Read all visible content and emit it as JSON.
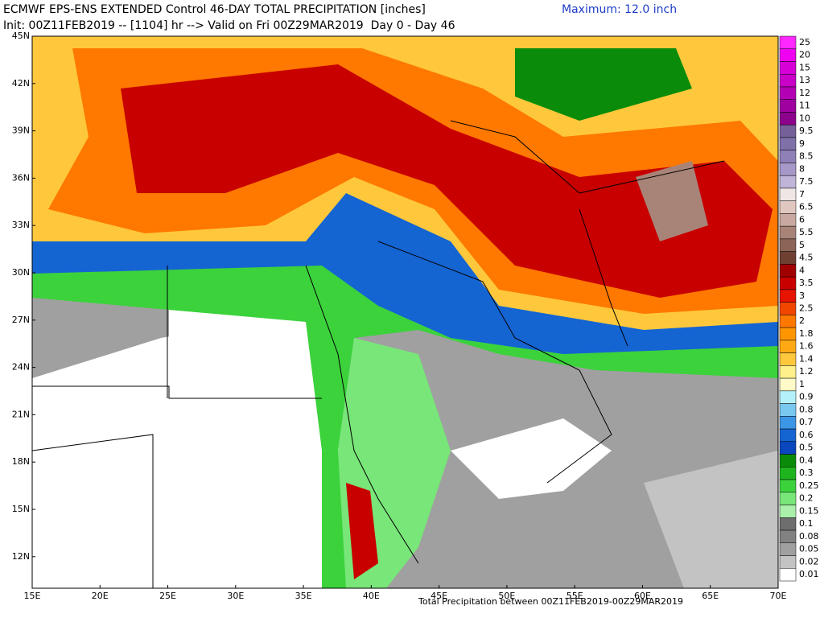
{
  "header": {
    "title": "ECMWF EPS-ENS EXTENDED Control 46-DAY TOTAL PRECIPITATION [inches]",
    "maximum": "Maximum: 12.0 inch",
    "init": "Init: 00Z11FEB2019 -- [1104] hr --> Valid on Fri 00Z29MAR2019  Day 0 - Day 46"
  },
  "lat_labels": [
    "45N",
    "42N",
    "39N",
    "36N",
    "33N",
    "30N",
    "27N",
    "24N",
    "21N",
    "18N",
    "15N",
    "12N"
  ],
  "lon_labels": [
    "15E",
    "20E",
    "25E",
    "30E",
    "35E",
    "40E",
    "45E",
    "50E",
    "55E",
    "60E",
    "65E",
    "70E"
  ],
  "colorbar": [
    {
      "label": "25",
      "color": "#ff28ff"
    },
    {
      "label": "20",
      "color": "#f000f0"
    },
    {
      "label": "15",
      "color": "#d700d7"
    },
    {
      "label": "13",
      "color": "#c800c8"
    },
    {
      "label": "12",
      "color": "#b400b4"
    },
    {
      "label": "11",
      "color": "#a000a0"
    },
    {
      "label": "10",
      "color": "#8c008c"
    },
    {
      "label": "9.5",
      "color": "#76609a"
    },
    {
      "label": "9",
      "color": "#8070a8"
    },
    {
      "label": "8.5",
      "color": "#9080b8"
    },
    {
      "label": "8",
      "color": "#a898c8"
    },
    {
      "label": "7.5",
      "color": "#c0b4d8"
    },
    {
      "label": "7",
      "color": "#f0e6e6"
    },
    {
      "label": "6.5",
      "color": "#e0c8c0"
    },
    {
      "label": "6",
      "color": "#c8a8a0"
    },
    {
      "label": "5.5",
      "color": "#a88478"
    },
    {
      "label": "5",
      "color": "#8c6458"
    },
    {
      "label": "4.5",
      "color": "#6e4032"
    },
    {
      "label": "4",
      "color": "#a00000"
    },
    {
      "label": "3.5",
      "color": "#c80000"
    },
    {
      "label": "3",
      "color": "#e61400"
    },
    {
      "label": "2.5",
      "color": "#f04600"
    },
    {
      "label": "2",
      "color": "#ff7800"
    },
    {
      "label": "1.8",
      "color": "#ff9600"
    },
    {
      "label": "1.6",
      "color": "#ffaa14"
    },
    {
      "label": "1.4",
      "color": "#ffc83c"
    },
    {
      "label": "1.2",
      "color": "#fff08c"
    },
    {
      "label": "1",
      "color": "#fffac8"
    },
    {
      "label": "0.9",
      "color": "#b4f0fa"
    },
    {
      "label": "0.8",
      "color": "#78c8f0"
    },
    {
      "label": "0.7",
      "color": "#3c96e6"
    },
    {
      "label": "0.6",
      "color": "#1464d2"
    },
    {
      "label": "0.5",
      "color": "#0a46be"
    },
    {
      "label": "0.4",
      "color": "#0a8c0a"
    },
    {
      "label": "0.3",
      "color": "#1eb41e"
    },
    {
      "label": "0.25",
      "color": "#3cd23c"
    },
    {
      "label": "0.2",
      "color": "#78e678"
    },
    {
      "label": "0.15",
      "color": "#aaf0aa"
    },
    {
      "label": "0.1",
      "color": "#6e6e6e"
    },
    {
      "label": "0.08",
      "color": "#828282"
    },
    {
      "label": "0.05",
      "color": "#a0a0a0"
    },
    {
      "label": "0.02",
      "color": "#c3c3c3"
    },
    {
      "label": "0.01",
      "color": "#ffffff"
    }
  ],
  "footer": "Total Precipitation between 00Z11FEB2019-00Z29MAR2019"
}
